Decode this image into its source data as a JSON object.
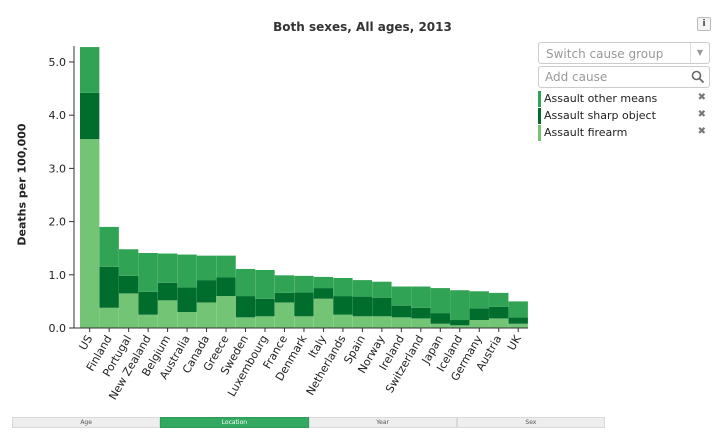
{
  "chart_data": {
    "type": "bar",
    "stacked": true,
    "title": "Both sexes, All ages, 2013",
    "xlabel": "",
    "ylabel": "Deaths per 100,000",
    "ylim": [
      0,
      5.3
    ],
    "yticks": [
      "0.0",
      "1.0",
      "2.0",
      "3.0",
      "4.0",
      "5.0"
    ],
    "grid": false,
    "legend_position": "right",
    "categories": [
      "US",
      "Finland",
      "Portugal",
      "New Zealand",
      "Belgium",
      "Australia",
      "Canada",
      "Greece",
      "Sweden",
      "Luxembourg",
      "France",
      "Denmark",
      "Italy",
      "Netherlands",
      "Spain",
      "Norway",
      "Ireland",
      "Switzerland",
      "Japan",
      "Iceland",
      "Germany",
      "Austria",
      "UK"
    ],
    "series": [
      {
        "name": "Assault firearm",
        "color": "#74c476",
        "values": [
          3.55,
          0.38,
          0.65,
          0.25,
          0.52,
          0.3,
          0.48,
          0.6,
          0.2,
          0.22,
          0.48,
          0.22,
          0.55,
          0.25,
          0.22,
          0.22,
          0.2,
          0.18,
          0.08,
          0.05,
          0.15,
          0.18,
          0.08
        ]
      },
      {
        "name": "Assault sharp object",
        "color": "#006d2c",
        "values": [
          0.87,
          0.77,
          0.33,
          0.43,
          0.33,
          0.46,
          0.42,
          0.35,
          0.4,
          0.33,
          0.18,
          0.45,
          0.2,
          0.35,
          0.37,
          0.35,
          0.22,
          0.2,
          0.2,
          0.1,
          0.22,
          0.22,
          0.12
        ]
      },
      {
        "name": "Assault other means",
        "color": "#31a354",
        "values": [
          0.86,
          0.75,
          0.5,
          0.73,
          0.55,
          0.62,
          0.46,
          0.41,
          0.51,
          0.54,
          0.33,
          0.31,
          0.21,
          0.34,
          0.31,
          0.3,
          0.36,
          0.4,
          0.47,
          0.56,
          0.32,
          0.26,
          0.3
        ]
      }
    ]
  },
  "controls": {
    "info_label": "i",
    "cause_group_placeholder": "Switch cause group",
    "add_cause_placeholder": "Add cause",
    "remove_glyph": "✖"
  },
  "legend": [
    {
      "label": "Assault other means",
      "color": "#31a354"
    },
    {
      "label": "Assault sharp object",
      "color": "#006d2c"
    },
    {
      "label": "Assault firearm",
      "color": "#74c476"
    }
  ],
  "tabs": [
    {
      "label": "Age",
      "active": false
    },
    {
      "label": "Location",
      "active": true
    },
    {
      "label": "Year",
      "active": false
    },
    {
      "label": "Sex",
      "active": false
    }
  ],
  "icons": {
    "search": "search-icon",
    "dropdown": "chevron-down-icon",
    "info": "info-icon",
    "remove": "close-icon"
  }
}
